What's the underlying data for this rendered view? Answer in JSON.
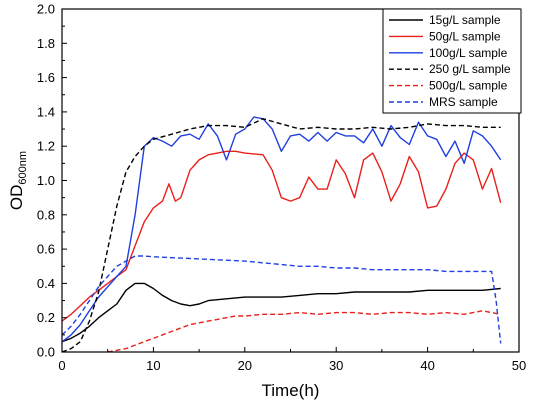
{
  "chart_data": {
    "type": "line",
    "xlabel": "Time(h)",
    "ylabel": "OD",
    "ylabel_sub": "600nm",
    "xlim": [
      0,
      50
    ],
    "ylim": [
      0.0,
      2.0
    ],
    "xticks": [
      "0",
      "10",
      "20",
      "30",
      "40",
      "50"
    ],
    "yticks": [
      "0.0",
      "0.2",
      "0.4",
      "0.6",
      "0.8",
      "1.0",
      "1.2",
      "1.4",
      "1.6",
      "1.8",
      "2.0"
    ],
    "grid": false,
    "legend_position": "top-right",
    "series": [
      {
        "name": "15g/L sample",
        "color": "#000000",
        "dash": "solid",
        "x": [
          0,
          1,
          2,
          3,
          4,
          5,
          6,
          7,
          8,
          9,
          10,
          11,
          12,
          13,
          14,
          15,
          16,
          18,
          20,
          22,
          24,
          26,
          28,
          30,
          32,
          34,
          36,
          38,
          40,
          42,
          44,
          46,
          48
        ],
        "y": [
          0.06,
          0.08,
          0.11,
          0.15,
          0.2,
          0.24,
          0.28,
          0.36,
          0.4,
          0.4,
          0.37,
          0.33,
          0.3,
          0.28,
          0.27,
          0.28,
          0.3,
          0.31,
          0.32,
          0.32,
          0.32,
          0.33,
          0.34,
          0.34,
          0.35,
          0.35,
          0.35,
          0.35,
          0.36,
          0.36,
          0.36,
          0.36,
          0.37
        ]
      },
      {
        "name": "50g/L sample",
        "color": "#e8201a",
        "dash": "solid",
        "x": [
          0,
          1,
          2,
          3,
          4,
          5,
          6,
          7,
          8,
          9,
          10,
          11,
          11.7,
          12.4,
          13,
          14,
          15,
          16,
          17,
          18,
          19,
          20,
          22,
          23,
          24,
          25,
          26,
          27,
          28,
          29,
          30,
          31,
          32,
          33,
          34,
          35,
          36,
          37,
          38,
          39,
          40,
          41,
          42,
          43,
          44,
          45,
          46,
          47,
          48
        ],
        "y": [
          0.18,
          0.22,
          0.27,
          0.32,
          0.36,
          0.4,
          0.44,
          0.48,
          0.62,
          0.76,
          0.84,
          0.88,
          0.98,
          0.88,
          0.9,
          1.06,
          1.12,
          1.15,
          1.16,
          1.17,
          1.17,
          1.16,
          1.15,
          1.06,
          0.9,
          0.88,
          0.9,
          1.02,
          0.95,
          0.95,
          1.12,
          1.04,
          0.9,
          1.12,
          1.16,
          1.05,
          0.88,
          0.98,
          1.14,
          1.05,
          0.84,
          0.85,
          0.95,
          1.1,
          1.16,
          1.12,
          0.95,
          1.07,
          0.87
        ]
      },
      {
        "name": "100g/L sample",
        "color": "#1f3fe0",
        "dash": "solid",
        "x": [
          0,
          1,
          2,
          3,
          4,
          5,
          6,
          7,
          8,
          9,
          10,
          11,
          12,
          13,
          14,
          15,
          16,
          17,
          18,
          19,
          20,
          21,
          22,
          23,
          24,
          25,
          26,
          27,
          28,
          29,
          30,
          31,
          32,
          33,
          34,
          35,
          36,
          37,
          38,
          39,
          40,
          41,
          42,
          43,
          44,
          45,
          46,
          47,
          48
        ],
        "y": [
          0.06,
          0.1,
          0.16,
          0.24,
          0.32,
          0.38,
          0.44,
          0.5,
          0.8,
          1.2,
          1.25,
          1.23,
          1.2,
          1.26,
          1.27,
          1.24,
          1.33,
          1.26,
          1.12,
          1.27,
          1.3,
          1.37,
          1.36,
          1.3,
          1.17,
          1.26,
          1.27,
          1.23,
          1.28,
          1.23,
          1.28,
          1.26,
          1.26,
          1.22,
          1.3,
          1.2,
          1.32,
          1.25,
          1.21,
          1.34,
          1.26,
          1.24,
          1.14,
          1.23,
          1.1,
          1.29,
          1.26,
          1.2,
          1.12
        ]
      },
      {
        "name": "250 g/L sample",
        "color": "#000000",
        "dash": "dash",
        "x": [
          0,
          1,
          2,
          3,
          4,
          5,
          6,
          7,
          8,
          9,
          10,
          12,
          14,
          16,
          18,
          20,
          22,
          24,
          26,
          28,
          30,
          32,
          34,
          36,
          38,
          40,
          42,
          44,
          46,
          48
        ],
        "y": [
          0.0,
          0.02,
          0.06,
          0.18,
          0.35,
          0.6,
          0.85,
          1.05,
          1.14,
          1.2,
          1.24,
          1.27,
          1.3,
          1.32,
          1.32,
          1.31,
          1.36,
          1.33,
          1.3,
          1.31,
          1.3,
          1.3,
          1.31,
          1.3,
          1.31,
          1.33,
          1.32,
          1.32,
          1.31,
          1.31
        ]
      },
      {
        "name": "500g/L sample",
        "color": "#e8201a",
        "dash": "dash",
        "x": [
          5,
          6,
          7,
          8,
          9,
          10,
          11,
          12,
          13,
          14,
          15,
          16,
          17,
          18,
          19,
          20,
          22,
          24,
          26,
          28,
          30,
          32,
          34,
          36,
          38,
          40,
          42,
          44,
          46,
          47,
          48
        ],
        "y": [
          0.0,
          0.01,
          0.02,
          0.04,
          0.06,
          0.08,
          0.1,
          0.12,
          0.14,
          0.16,
          0.17,
          0.18,
          0.19,
          0.2,
          0.21,
          0.21,
          0.22,
          0.22,
          0.23,
          0.22,
          0.23,
          0.23,
          0.22,
          0.23,
          0.23,
          0.22,
          0.23,
          0.22,
          0.24,
          0.23,
          0.22
        ]
      },
      {
        "name": "MRS sample",
        "color": "#1f3fe0",
        "dash": "dash",
        "x": [
          0,
          1,
          2,
          3,
          4,
          5,
          6,
          7,
          8,
          9,
          10,
          12,
          14,
          16,
          18,
          20,
          22,
          24,
          26,
          28,
          30,
          32,
          34,
          36,
          38,
          40,
          42,
          44,
          46,
          47,
          47.5,
          48
        ],
        "y": [
          0.1,
          0.15,
          0.22,
          0.3,
          0.38,
          0.44,
          0.5,
          0.53,
          0.56,
          0.56,
          0.555,
          0.55,
          0.545,
          0.54,
          0.535,
          0.53,
          0.52,
          0.51,
          0.5,
          0.5,
          0.49,
          0.49,
          0.48,
          0.48,
          0.48,
          0.48,
          0.47,
          0.47,
          0.47,
          0.47,
          0.3,
          0.05
        ]
      }
    ]
  }
}
